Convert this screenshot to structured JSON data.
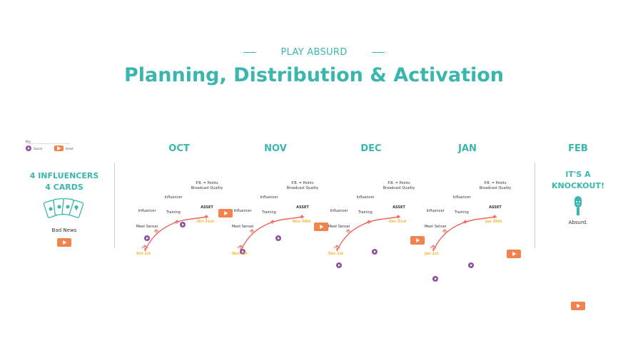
{
  "header": {
    "kicker": "PLAY ABSURD",
    "title": "Planning, Distribution & Activation"
  },
  "key": {
    "title": "Key",
    "social_label": "Social",
    "asset_label": "Asset"
  },
  "left_panel": {
    "heading_line1": "4 INFLUENCERS",
    "heading_line2": "4 CARDS",
    "icon": "playing-cards-icon",
    "caption": "Bad News"
  },
  "right_panel": {
    "month": "FEB",
    "heading_line1": "IT'S A",
    "heading_line2": "KNOCKOUT!",
    "icon": "microphone-icon",
    "caption": "Absurd."
  },
  "labels": {
    "influencer": "Influencer",
    "meet_sensei": "Meet Sensei",
    "training": "Training",
    "points_line1": "P.B. = Points",
    "points_line2": "Broadcast Quality",
    "asset": "ASSET"
  },
  "months": [
    {
      "name": "OCT",
      "start": "Oct 1st",
      "end": "Oct 31st"
    },
    {
      "name": "NOV",
      "start": "Nov 1st",
      "end": "Nov 30th"
    },
    {
      "name": "DEC",
      "start": "Dec 1st",
      "end": "Dec 31st"
    },
    {
      "name": "JAN",
      "start": "Jan 1st",
      "end": "Jan 30th"
    }
  ],
  "colors": {
    "teal": "#3bb6ae",
    "purple": "#8e4fa0",
    "orange": "#f0834e",
    "curve": "#e8685e",
    "date": "#f5b82e"
  }
}
